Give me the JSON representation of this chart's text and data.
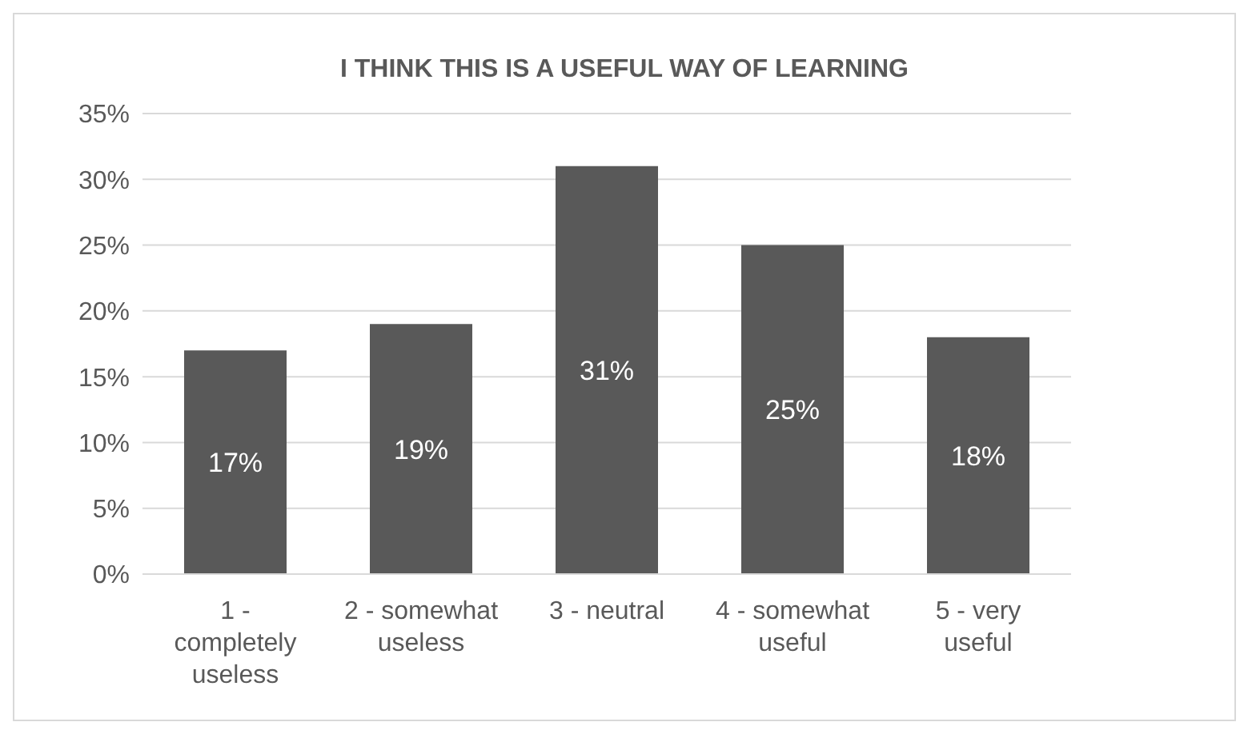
{
  "chart_data": {
    "type": "bar",
    "title": "I THINK THIS IS A USEFUL WAY OF LEARNING",
    "categories": [
      "1 - completely useless",
      "2 - somewhat useless",
      "3 - neutral",
      "4 - somewhat useful",
      "5 - very useful"
    ],
    "values": [
      17,
      19,
      31,
      25,
      18
    ],
    "value_labels": [
      "17%",
      "19%",
      "31%",
      "25%",
      "18%"
    ],
    "color": "#595959",
    "ylim": [
      0,
      35
    ],
    "yticks": [
      {
        "value": 0,
        "label": "0%"
      },
      {
        "value": 5,
        "label": "5%"
      },
      {
        "value": 10,
        "label": "10%"
      },
      {
        "value": 15,
        "label": "15%"
      },
      {
        "value": 20,
        "label": "20%"
      },
      {
        "value": 25,
        "label": "25%"
      },
      {
        "value": 30,
        "label": "30%"
      },
      {
        "value": 35,
        "label": "35%"
      }
    ],
    "grid": "y"
  }
}
